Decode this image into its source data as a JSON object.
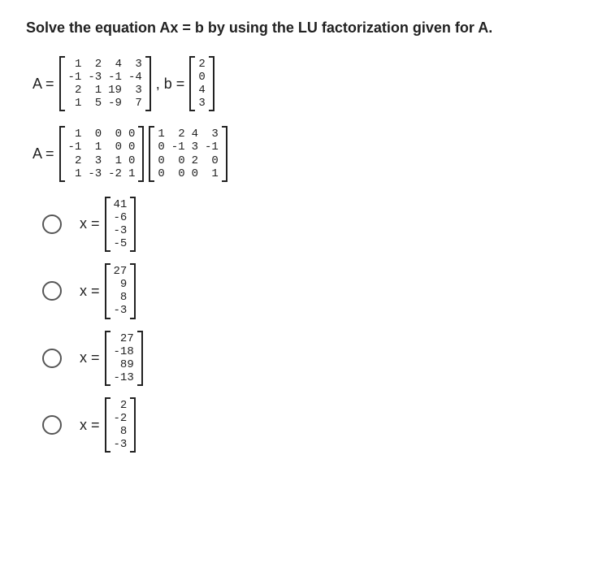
{
  "question_text": "Solve the equation Ax = b by using the LU factorization given for A.",
  "colors": {
    "text": "#222222",
    "background": "#ffffff",
    "radio_border": "#555555",
    "bracket": "#222222"
  },
  "fonts": {
    "body_family": "Arial",
    "matrix_family": "Courier New",
    "question_size_pt": 14,
    "matrix_size_pt": 10
  },
  "A_label": "A =",
  "b_label": ", b =",
  "A_matrix": {
    "type": "matrix",
    "rows": 4,
    "cols": 4,
    "values": [
      [
        "1",
        "2",
        "4",
        "3"
      ],
      [
        "-1",
        "-3",
        "-1",
        "-4"
      ],
      [
        "2",
        "1",
        "19",
        "3"
      ],
      [
        "1",
        "5",
        "-9",
        "7"
      ]
    ]
  },
  "b_vector": {
    "type": "matrix",
    "rows": 4,
    "cols": 1,
    "values": [
      [
        "2"
      ],
      [
        "0"
      ],
      [
        "4"
      ],
      [
        "3"
      ]
    ]
  },
  "LU": {
    "label": "A =",
    "L": {
      "type": "matrix",
      "rows": 4,
      "cols": 4,
      "values": [
        [
          "1",
          "0",
          "0",
          "0"
        ],
        [
          "-1",
          "1",
          "0",
          "0"
        ],
        [
          "2",
          "3",
          "1",
          "0"
        ],
        [
          "1",
          "-3",
          "-2",
          "1"
        ]
      ]
    },
    "U": {
      "type": "matrix",
      "rows": 4,
      "cols": 4,
      "values": [
        [
          "1",
          "2",
          "4",
          "3"
        ],
        [
          "0",
          "-1",
          "3",
          "-1"
        ],
        [
          "0",
          "0",
          "2",
          "0"
        ],
        [
          "0",
          "0",
          "0",
          "1"
        ]
      ]
    }
  },
  "options": [
    {
      "label": "x =",
      "vector": {
        "type": "matrix",
        "rows": 4,
        "cols": 1,
        "values": [
          [
            "41"
          ],
          [
            "-6"
          ],
          [
            "-3"
          ],
          [
            "-5"
          ]
        ]
      }
    },
    {
      "label": "x =",
      "vector": {
        "type": "matrix",
        "rows": 4,
        "cols": 1,
        "values": [
          [
            "27"
          ],
          [
            "9"
          ],
          [
            "8"
          ],
          [
            "-3"
          ]
        ]
      }
    },
    {
      "label": "x =",
      "vector": {
        "type": "matrix",
        "rows": 4,
        "cols": 1,
        "values": [
          [
            "27"
          ],
          [
            "-18"
          ],
          [
            "89"
          ],
          [
            "-13"
          ]
        ]
      }
    },
    {
      "label": "x =",
      "vector": {
        "type": "matrix",
        "rows": 4,
        "cols": 1,
        "values": [
          [
            "2"
          ],
          [
            "-2"
          ],
          [
            "8"
          ],
          [
            "-3"
          ]
        ]
      }
    }
  ]
}
